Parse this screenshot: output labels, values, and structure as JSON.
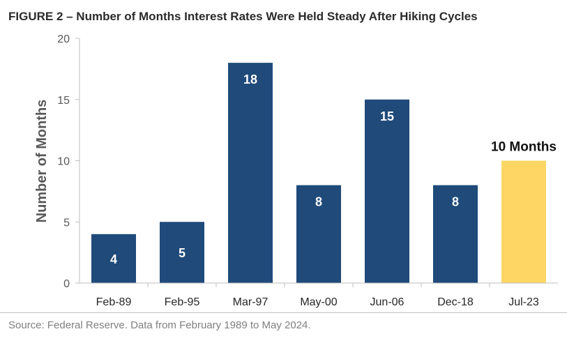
{
  "chart_data": {
    "type": "bar",
    "title": "FIGURE 2 – Number of Months Interest Rates Were Held Steady After Hiking Cycles",
    "ylabel": "Number of Months",
    "xlabel": "",
    "ylim": [
      0,
      20
    ],
    "yticks": [
      0,
      5,
      10,
      15,
      20
    ],
    "grid": false,
    "categories": [
      "Feb-89",
      "Feb-95",
      "Mar-97",
      "May-00",
      "Jun-06",
      "Dec-18",
      "Jul-23"
    ],
    "values": [
      4,
      5,
      18,
      8,
      15,
      8,
      10
    ],
    "data_labels": [
      "4",
      "5",
      "18",
      "8",
      "15",
      "8",
      ""
    ],
    "highlight": {
      "category": "Jul-23",
      "label": "10 Months",
      "color": "#FDD663"
    },
    "bar_color": "#1F4A79",
    "source": "Source: Federal Reserve. Data from February 1989 to May 2024."
  }
}
